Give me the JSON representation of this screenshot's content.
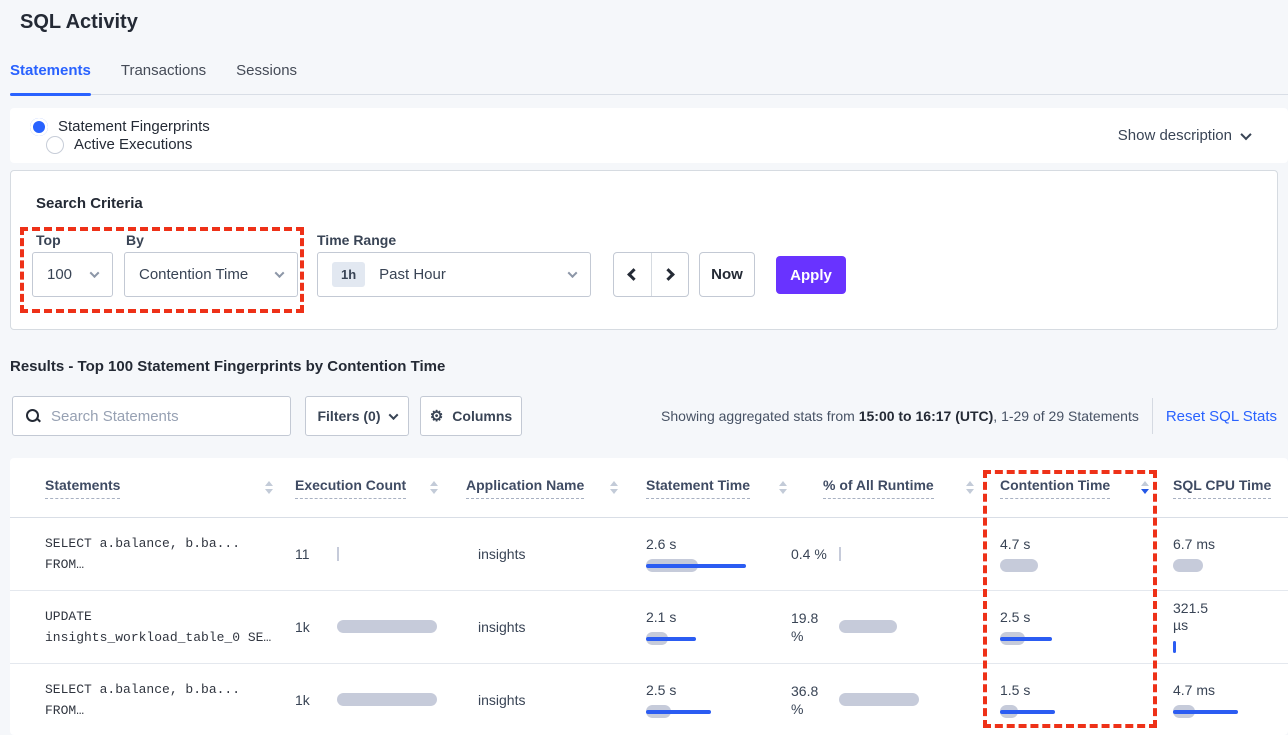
{
  "page": {
    "title": "SQL Activity"
  },
  "tabs": [
    {
      "label": "Statements",
      "active": true
    },
    {
      "label": "Transactions",
      "active": false
    },
    {
      "label": "Sessions",
      "active": false
    }
  ],
  "view_toggle": {
    "options": [
      {
        "label": "Statement Fingerprints",
        "selected": true
      },
      {
        "label": "Active Executions",
        "selected": false
      }
    ],
    "show_description": "Show description"
  },
  "search_criteria": {
    "heading": "Search Criteria",
    "top_label": "Top",
    "top_value": "100",
    "by_label": "By",
    "by_value": "Contention Time",
    "time_range_label": "Time Range",
    "time_badge": "1h",
    "time_value": "Past Hour",
    "now_label": "Now",
    "apply_label": "Apply"
  },
  "results": {
    "heading": "Results - Top 100 Statement Fingerprints by Contention Time",
    "search_placeholder": "Search Statements",
    "filters_label": "Filters (0)",
    "columns_label": "Columns",
    "stats_prefix": "Showing aggregated stats from ",
    "stats_bold": "15:00 to 16:17 (UTC)",
    "stats_suffix": ", 1-29 of 29 Statements",
    "reset_label": "Reset SQL Stats"
  },
  "icons": {
    "gear": "⚙"
  },
  "colors": {
    "accent_blue": "#2962ff",
    "apply_purple": "#6933ff",
    "annotation_red": "#ee3118",
    "bar_gray": "#c6cbda",
    "bar_blue": "#2b5cf2"
  },
  "table": {
    "headers": [
      {
        "label": "Statements",
        "sort": "both"
      },
      {
        "label": "Execution Count",
        "sort": "both"
      },
      {
        "label": "Application Name",
        "sort": "both"
      },
      {
        "label": "Statement Time",
        "sort": "both"
      },
      {
        "label": "% of All Runtime",
        "sort": "both"
      },
      {
        "label": "Contention Time",
        "sort": "desc"
      },
      {
        "label": "SQL CPU Time",
        "sort": "none"
      }
    ],
    "rows": [
      {
        "statement_lines": [
          "SELECT a.balance, b.ba...",
          "FROM…"
        ],
        "execution_count": {
          "value": "11",
          "bar": {
            "gray": 2,
            "blue": 0
          }
        },
        "application": "insights",
        "statement_time": {
          "value": "2.6 s",
          "bar": {
            "gray": 52,
            "blue": 100
          }
        },
        "pct_runtime": {
          "value": "0.4 %",
          "bar": {
            "gray": 2,
            "blue": 0
          }
        },
        "contention_time": {
          "value": "4.7 s",
          "bar": {
            "gray": 38,
            "blue": 0
          }
        },
        "sql_cpu_time": {
          "value": "6.7 ms",
          "bar": {
            "gray": 30,
            "blue": 0
          }
        }
      },
      {
        "statement_lines": [
          "UPDATE",
          "insights_workload_table_0 SE…"
        ],
        "execution_count": {
          "value": "1k",
          "bar": {
            "gray": 100,
            "blue": 0
          }
        },
        "application": "insights",
        "statement_time": {
          "value": "2.1 s",
          "bar": {
            "gray": 22,
            "blue": 50
          }
        },
        "pct_runtime": {
          "value": "19.8 %",
          "bar": {
            "gray": 58,
            "blue": 0
          }
        },
        "contention_time": {
          "value": "2.5 s",
          "bar": {
            "gray": 25,
            "blue": 52
          }
        },
        "sql_cpu_time": {
          "value": "321.5 µs",
          "bar": {
            "gray": 0,
            "blue": 3
          }
        }
      },
      {
        "statement_lines": [
          "SELECT a.balance, b.ba...",
          "FROM…"
        ],
        "execution_count": {
          "value": "1k",
          "bar": {
            "gray": 100,
            "blue": 0
          }
        },
        "application": "insights",
        "statement_time": {
          "value": "2.5 s",
          "bar": {
            "gray": 25,
            "blue": 65
          }
        },
        "pct_runtime": {
          "value": "36.8 %",
          "bar": {
            "gray": 80,
            "blue": 0
          }
        },
        "contention_time": {
          "value": "1.5 s",
          "bar": {
            "gray": 18,
            "blue": 55
          }
        },
        "sql_cpu_time": {
          "value": "4.7 ms",
          "bar": {
            "gray": 22,
            "blue": 65
          }
        }
      }
    ]
  }
}
